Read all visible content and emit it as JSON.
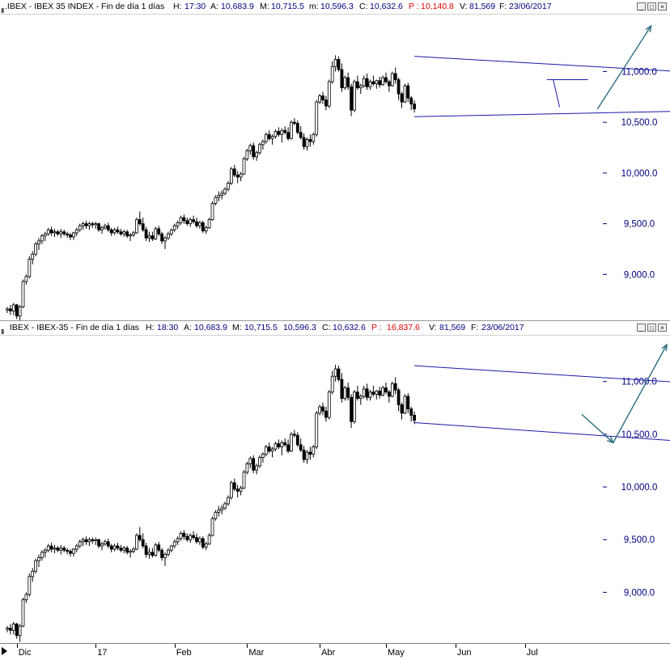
{
  "chart_data": [
    {
      "type": "candlestick",
      "header": {
        "symbol": ".IBEX - IBEX 35 INDEX - Fin de día 1 días",
        "h_label": "H:",
        "h_value": "17:30",
        "a_label": "A:",
        "a_value": "10,683.9",
        "m_label": "M:",
        "m_value": "10,715.5",
        "min_label": "m:",
        "min_value": "10,596.3",
        "c_label": "C:",
        "c_value": "10,632.6",
        "p_label": "P :",
        "p_value": "10,140.8",
        "v_label": "V:",
        "v_value": "81,569",
        "f_label": "F:",
        "f_value": "23/06/2017"
      },
      "y_ticks": [
        "11,000.0",
        "10,500.0",
        "10,000.0",
        "9,500.0",
        "9,000.0"
      ],
      "y_tick_values": [
        11000,
        10500,
        10000,
        9500,
        9000
      ],
      "ylim": [
        8580,
        11530
      ],
      "annotations": [
        {
          "type": "trendline",
          "from": [
            129,
            11150
          ],
          "to": [
            230,
            10970
          ]
        },
        {
          "type": "trendline",
          "from": [
            129,
            10555
          ],
          "to": [
            230,
            10620
          ]
        },
        {
          "type": "trendline",
          "from": [
            171,
            10920
          ],
          "to": [
            184,
            10920
          ]
        },
        {
          "type": "trendline",
          "from": [
            173,
            10920
          ],
          "to": [
            175,
            10650
          ]
        },
        {
          "type": "arrow",
          "from": [
            187,
            10630
          ],
          "to": [
            204,
            11450
          ],
          "color": "#2e6d80"
        }
      ]
    },
    {
      "type": "candlestick",
      "header": {
        "symbol": "IBEX - IBEX-35 - Fin de día 1 días",
        "h_label": "H:",
        "h_value": "18:30",
        "a_label": "A:",
        "a_value": "10,683.9",
        "m_label": "M:",
        "m_value": "10,715.5",
        "min_label": "m:",
        "min_value": "10,596.3",
        "c_label": "C:",
        "c_value": "10,632.6",
        "p_label": "P :",
        "p_value": "16,837.6",
        "v_label": "V:",
        "v_value": "81,569",
        "f_label": "F:",
        "f_value": "23/06/2017"
      },
      "y_ticks": [
        "11,000.0",
        "10,500.0",
        "10,000.0",
        "9,500.0",
        "9,000.0"
      ],
      "y_tick_values": [
        11000,
        10500,
        10000,
        9500,
        9000
      ],
      "ylim": [
        8550,
        11420
      ],
      "annotations": [
        {
          "type": "trendline",
          "from": [
            129,
            11150
          ],
          "to": [
            230,
            10960
          ]
        },
        {
          "type": "trendline",
          "from": [
            129,
            10610
          ],
          "to": [
            230,
            10400
          ]
        },
        {
          "type": "arrow",
          "from": [
            182,
            10690
          ],
          "to": [
            192,
            10420
          ],
          "color": "#2e6d80"
        },
        {
          "type": "arrow",
          "from": [
            192,
            10420
          ],
          "to": [
            209,
            11350
          ],
          "color": "#2e6d80"
        }
      ]
    }
  ],
  "shared": {
    "x_labels": [
      "Dic",
      "17",
      "Feb",
      "Mar",
      "Abr",
      "May",
      "Jun",
      "Jul"
    ],
    "x_label_bars": [
      3,
      28,
      53,
      76,
      99,
      120,
      142,
      164
    ],
    "series_ohlc": [
      [
        8650,
        8680,
        8620,
        8660
      ],
      [
        8660,
        8700,
        8600,
        8640
      ],
      [
        8640,
        8720,
        8600,
        8700
      ],
      [
        8700,
        8710,
        8560,
        8590
      ],
      [
        8590,
        8700,
        8530,
        8680
      ],
      [
        8680,
        8950,
        8670,
        8930
      ],
      [
        8930,
        9000,
        8900,
        8980
      ],
      [
        8980,
        9180,
        8960,
        9150
      ],
      [
        9150,
        9230,
        9100,
        9200
      ],
      [
        9200,
        9320,
        9180,
        9300
      ],
      [
        9300,
        9360,
        9240,
        9330
      ],
      [
        9330,
        9400,
        9300,
        9380
      ],
      [
        9380,
        9420,
        9330,
        9400
      ],
      [
        9400,
        9460,
        9380,
        9440
      ],
      [
        9440,
        9470,
        9380,
        9410
      ],
      [
        9410,
        9450,
        9370,
        9420
      ],
      [
        9420,
        9440,
        9380,
        9400
      ],
      [
        9400,
        9450,
        9360,
        9420
      ],
      [
        9420,
        9440,
        9380,
        9400
      ],
      [
        9400,
        9420,
        9360,
        9390
      ],
      [
        9390,
        9410,
        9340,
        9370
      ],
      [
        9370,
        9420,
        9340,
        9410
      ],
      [
        9410,
        9460,
        9380,
        9440
      ],
      [
        9440,
        9500,
        9420,
        9480
      ],
      [
        9480,
        9520,
        9440,
        9500
      ],
      [
        9500,
        9530,
        9450,
        9480
      ],
      [
        9480,
        9520,
        9440,
        9500
      ],
      [
        9500,
        9520,
        9460,
        9490
      ],
      [
        9490,
        9520,
        9450,
        9500
      ],
      [
        9500,
        9510,
        9420,
        9440
      ],
      [
        9440,
        9480,
        9400,
        9460
      ],
      [
        9460,
        9500,
        9440,
        9480
      ],
      [
        9480,
        9510,
        9420,
        9440
      ],
      [
        9440,
        9460,
        9380,
        9410
      ],
      [
        9410,
        9460,
        9390,
        9440
      ],
      [
        9440,
        9470,
        9400,
        9420
      ],
      [
        9420,
        9450,
        9380,
        9400
      ],
      [
        9400,
        9440,
        9370,
        9420
      ],
      [
        9420,
        9440,
        9360,
        9380
      ],
      [
        9380,
        9410,
        9330,
        9390
      ],
      [
        9390,
        9430,
        9370,
        9410
      ],
      [
        9410,
        9560,
        9400,
        9540
      ],
      [
        9540,
        9620,
        9480,
        9500
      ],
      [
        9500,
        9560,
        9420,
        9440
      ],
      [
        9440,
        9470,
        9330,
        9360
      ],
      [
        9360,
        9420,
        9320,
        9380
      ],
      [
        9380,
        9420,
        9330,
        9350
      ],
      [
        9350,
        9470,
        9340,
        9450
      ],
      [
        9450,
        9480,
        9380,
        9400
      ],
      [
        9400,
        9420,
        9300,
        9330
      ],
      [
        9330,
        9380,
        9250,
        9360
      ],
      [
        9360,
        9420,
        9340,
        9400
      ],
      [
        9400,
        9450,
        9380,
        9440
      ],
      [
        9440,
        9500,
        9420,
        9480
      ],
      [
        9480,
        9530,
        9450,
        9510
      ],
      [
        9510,
        9580,
        9490,
        9560
      ],
      [
        9560,
        9590,
        9500,
        9530
      ],
      [
        9530,
        9560,
        9480,
        9500
      ],
      [
        9500,
        9560,
        9470,
        9540
      ],
      [
        9540,
        9580,
        9500,
        9520
      ],
      [
        9520,
        9560,
        9460,
        9480
      ],
      [
        9480,
        9530,
        9450,
        9510
      ],
      [
        9510,
        9530,
        9410,
        9430
      ],
      [
        9430,
        9480,
        9400,
        9460
      ],
      [
        9460,
        9560,
        9450,
        9540
      ],
      [
        9540,
        9720,
        9530,
        9700
      ],
      [
        9700,
        9780,
        9680,
        9760
      ],
      [
        9760,
        9820,
        9720,
        9780
      ],
      [
        9780,
        9830,
        9740,
        9800
      ],
      [
        9800,
        9860,
        9780,
        9840
      ],
      [
        9840,
        9920,
        9820,
        9900
      ],
      [
        9900,
        10060,
        9880,
        10040
      ],
      [
        10040,
        10080,
        9960,
        9980
      ],
      [
        9980,
        10020,
        9900,
        9960
      ],
      [
        9960,
        10010,
        9920,
        9990
      ],
      [
        9990,
        10160,
        9980,
        10140
      ],
      [
        10140,
        10240,
        10120,
        10220
      ],
      [
        10220,
        10290,
        10180,
        10270
      ],
      [
        10270,
        10300,
        10130,
        10160
      ],
      [
        10160,
        10220,
        10120,
        10200
      ],
      [
        10200,
        10300,
        10180,
        10280
      ],
      [
        10280,
        10330,
        10230,
        10310
      ],
      [
        10310,
        10400,
        10290,
        10380
      ],
      [
        10380,
        10420,
        10320,
        10340
      ],
      [
        10340,
        10380,
        10280,
        10360
      ],
      [
        10360,
        10430,
        10340,
        10410
      ],
      [
        10410,
        10450,
        10360,
        10380
      ],
      [
        10380,
        10440,
        10300,
        10420
      ],
      [
        10420,
        10460,
        10380,
        10400
      ],
      [
        10400,
        10450,
        10320,
        10340
      ],
      [
        10340,
        10520,
        10330,
        10500
      ],
      [
        10500,
        10540,
        10470,
        10490
      ],
      [
        10490,
        10520,
        10380,
        10400
      ],
      [
        10400,
        10460,
        10330,
        10350
      ],
      [
        10350,
        10390,
        10230,
        10260
      ],
      [
        10260,
        10350,
        10220,
        10330
      ],
      [
        10330,
        10380,
        10260,
        10310
      ],
      [
        10310,
        10400,
        10280,
        10380
      ],
      [
        10380,
        10720,
        10360,
        10700
      ],
      [
        10700,
        10780,
        10680,
        10760
      ],
      [
        10760,
        10800,
        10680,
        10720
      ],
      [
        10720,
        10760,
        10620,
        10660
      ],
      [
        10660,
        10920,
        10640,
        10900
      ],
      [
        10900,
        11100,
        10880,
        11050
      ],
      [
        11050,
        11160,
        11000,
        11120
      ],
      [
        11120,
        11150,
        11000,
        11020
      ],
      [
        11020,
        11080,
        10800,
        10840
      ],
      [
        10840,
        10960,
        10820,
        10940
      ],
      [
        10940,
        10990,
        10820,
        10850
      ],
      [
        10850,
        10880,
        10560,
        10620
      ],
      [
        10620,
        10920,
        10600,
        10900
      ],
      [
        10900,
        10960,
        10820,
        10840
      ],
      [
        10840,
        10880,
        10780,
        10860
      ],
      [
        10860,
        10960,
        10840,
        10930
      ],
      [
        10930,
        10980,
        10820,
        10850
      ],
      [
        10850,
        10920,
        10820,
        10900
      ],
      [
        10900,
        10960,
        10860,
        10880
      ],
      [
        10880,
        10920,
        10830,
        10910
      ],
      [
        10910,
        10950,
        10840,
        10870
      ],
      [
        10870,
        10960,
        10860,
        10940
      ],
      [
        10940,
        10990,
        10880,
        10900
      ],
      [
        10900,
        10920,
        10800,
        10860
      ],
      [
        10860,
        11000,
        10850,
        10980
      ],
      [
        10980,
        11040,
        10880,
        10920
      ],
      [
        10920,
        10940,
        10720,
        10780
      ],
      [
        10780,
        10800,
        10640,
        10700
      ],
      [
        10700,
        10880,
        10690,
        10860
      ],
      [
        10860,
        10890,
        10700,
        10740
      ],
      [
        10740,
        10760,
        10620,
        10680
      ],
      [
        10680,
        10715,
        10596,
        10632
      ]
    ]
  }
}
